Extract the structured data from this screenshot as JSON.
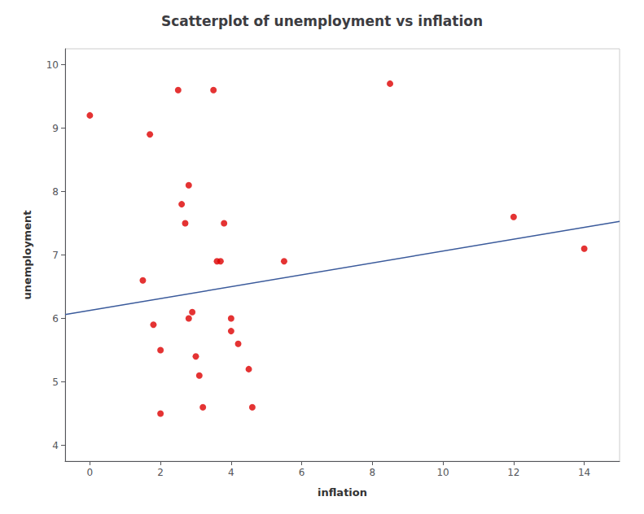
{
  "chart_data": {
    "type": "scatter",
    "title": "Scatterplot of unemployment vs inflation",
    "xlabel": "inflation",
    "ylabel": "unemployment",
    "series": [
      {
        "type": "scatter",
        "color": "#dd0000",
        "x": [
          0.0,
          1.5,
          1.7,
          1.8,
          2.0,
          2.0,
          2.5,
          2.6,
          2.7,
          2.8,
          2.8,
          2.9,
          3.0,
          3.1,
          3.2,
          3.5,
          3.6,
          3.7,
          3.8,
          4.0,
          4.0,
          4.2,
          4.5,
          4.6,
          5.5,
          8.5,
          12.0,
          14.0
        ],
        "values": [
          9.2,
          6.6,
          8.9,
          5.9,
          4.5,
          5.5,
          9.6,
          7.8,
          7.5,
          8.1,
          6.0,
          6.1,
          5.4,
          5.1,
          4.6,
          9.6,
          6.9,
          6.9,
          7.5,
          6.0,
          5.8,
          5.6,
          5.2,
          4.6,
          6.9,
          9.7,
          7.6,
          7.1
        ]
      },
      {
        "type": "line",
        "color": "#3a5a9b",
        "x": [
          -0.7,
          15.0
        ],
        "values": [
          6.06,
          7.53
        ]
      }
    ],
    "xlim": [
      -0.7,
      15.0
    ],
    "ylim": [
      3.75,
      10.25
    ],
    "xticks": [
      0,
      2,
      4,
      6,
      8,
      10,
      12,
      14
    ],
    "yticks": [
      4,
      5,
      6,
      7,
      8,
      9,
      10
    ],
    "grid": false
  }
}
